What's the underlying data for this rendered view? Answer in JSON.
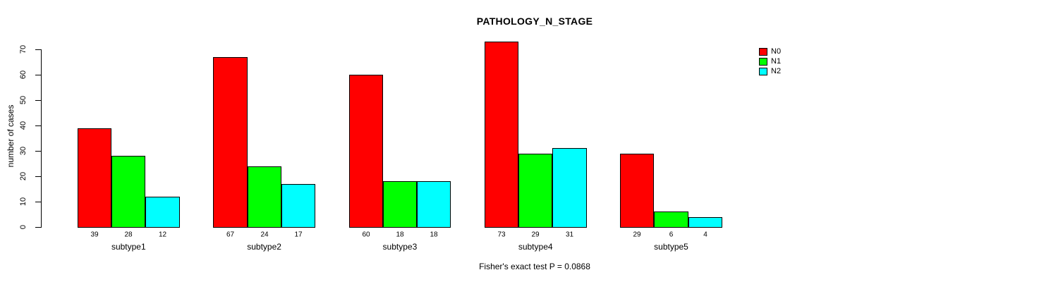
{
  "chart_data": {
    "type": "bar",
    "title": "PATHOLOGY_N_STAGE",
    "xlabel": "",
    "ylabel": "number of cases",
    "annotation": "Fisher's exact test P = 0.0868",
    "categories": [
      "subtype1",
      "subtype2",
      "subtype3",
      "subtype4",
      "subtype5"
    ],
    "series": [
      {
        "name": "N0",
        "color": "#ff0000",
        "values": [
          39,
          67,
          60,
          73,
          29
        ]
      },
      {
        "name": "N1",
        "color": "#00ff00",
        "values": [
          28,
          24,
          18,
          29,
          6
        ]
      },
      {
        "name": "N2",
        "color": "#00ffff",
        "values": [
          12,
          17,
          18,
          31,
          4
        ]
      }
    ],
    "ylim": [
      0,
      70
    ],
    "yticks": [
      0,
      10,
      20,
      30,
      40,
      50,
      60,
      70
    ],
    "grid": false,
    "legend_position": "top-right",
    "bar_value_labels": true,
    "bar_border_color": "#000000",
    "background_color": "#ffffff"
  }
}
